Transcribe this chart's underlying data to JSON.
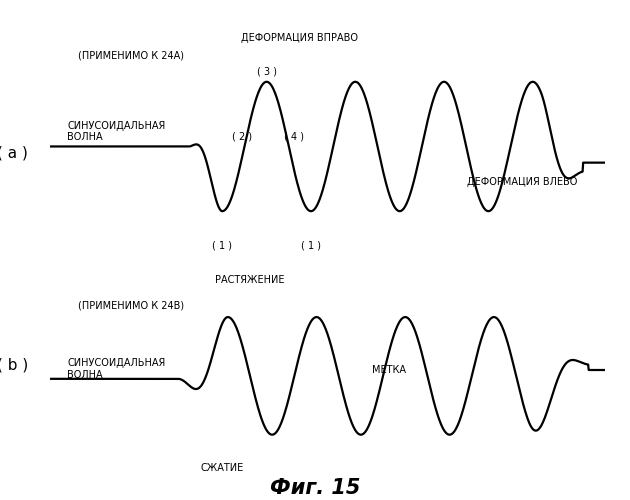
{
  "title": "Фиг. 15",
  "title_fontsize": 15,
  "bg_color": "#ffffff",
  "text_color": "#000000",
  "line_color": "#000000",
  "line_width": 1.6,
  "panel_a_label": "( a )",
  "panel_b_label": "( b )",
  "panel_a_texts": {
    "top_label": "ДЕФОРМАЦИЯ ВПРАВО",
    "applicable": "(ПРИМЕНИМО К 24А)",
    "sine_label": "СИНУСОИДАЛЬНАЯ\nВОЛНА",
    "deform_left": "ДЕФОРМАЦИЯ ВЛЕВО",
    "pt1_left": "( 1 )",
    "pt1_right": "( 1 )",
    "pt2": "( 2 )",
    "pt3": "( 3 )",
    "pt4": "( 4 )"
  },
  "panel_b_texts": {
    "stretch": "РАСТЯЖЕНИЕ",
    "applicable": "(ПРИМЕНИМО К 24В)",
    "sine_label": "СИНУСОИДАЛЬНАЯ\nВОЛНА",
    "compress": "СЖАТИЕ",
    "mark": "МЕТКА"
  }
}
